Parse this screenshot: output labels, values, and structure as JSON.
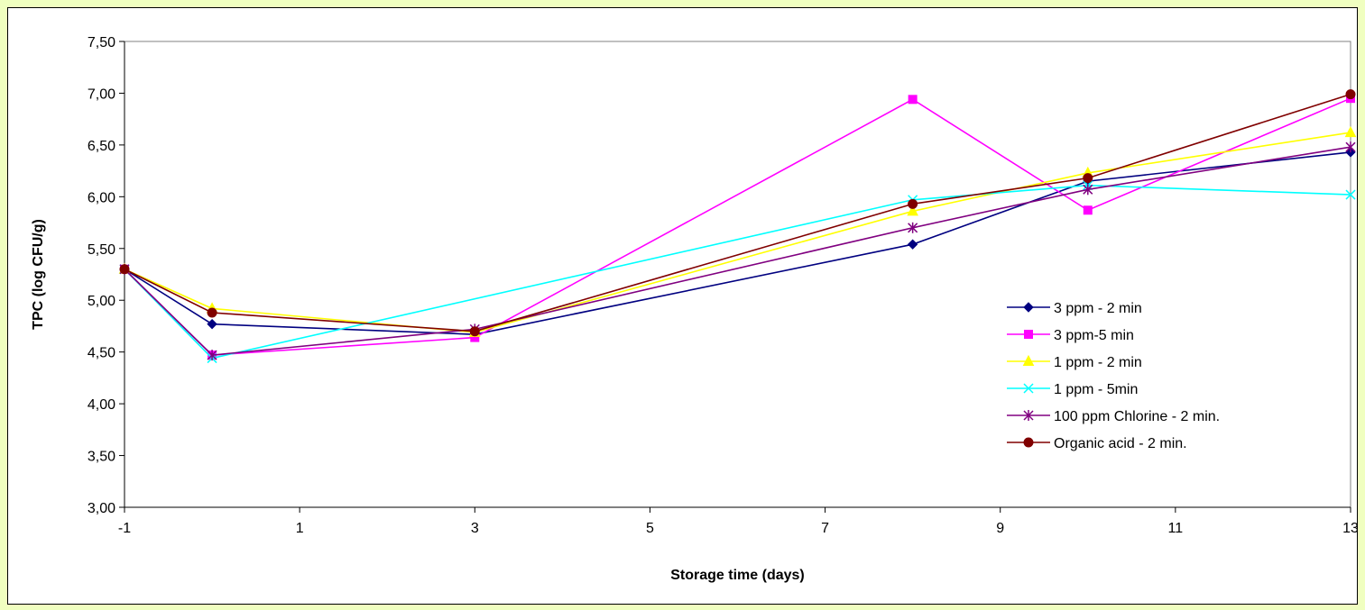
{
  "chart_data": {
    "type": "line",
    "title": "",
    "xlabel": "Storage time (days)",
    "ylabel": "TPC (log CFU/g)",
    "xlim": [
      -1,
      13
    ],
    "ylim": [
      3.0,
      7.5
    ],
    "x_ticks": [
      "-1",
      "1",
      "3",
      "5",
      "7",
      "9",
      "11",
      "13"
    ],
    "x_tick_values": [
      -1,
      1,
      3,
      5,
      7,
      9,
      11,
      13
    ],
    "y_ticks": [
      "3,00",
      "3,50",
      "4,00",
      "4,50",
      "5,00",
      "5,50",
      "6,00",
      "6,50",
      "7,00",
      "7,50"
    ],
    "y_tick_values": [
      3.0,
      3.5,
      4.0,
      4.5,
      5.0,
      5.5,
      6.0,
      6.5,
      7.0,
      7.5
    ],
    "grid": false,
    "legend_position": "right",
    "series": [
      {
        "name": "3 ppm - 2 min",
        "color": "#000080",
        "marker": "diamond",
        "points": [
          [
            -1,
            5.3
          ],
          [
            0,
            4.77
          ],
          [
            3,
            4.67
          ],
          [
            8,
            5.54
          ],
          [
            10,
            6.15
          ],
          [
            13,
            6.43
          ]
        ]
      },
      {
        "name": "3 ppm-5 min",
        "color": "#ff00ff",
        "marker": "square",
        "points": [
          [
            -1,
            5.3
          ],
          [
            0,
            4.47
          ],
          [
            3,
            4.64
          ],
          [
            8,
            6.94
          ],
          [
            10,
            5.87
          ],
          [
            13,
            6.95
          ]
        ]
      },
      {
        "name": "1 ppm - 2 min",
        "color": "#ffff00",
        "marker": "triangle",
        "points": [
          [
            -1,
            5.3
          ],
          [
            0,
            4.92
          ],
          [
            3,
            4.69
          ],
          [
            8,
            5.86
          ],
          [
            10,
            6.23
          ],
          [
            13,
            6.62
          ]
        ]
      },
      {
        "name": "1 ppm - 5min",
        "color": "#00ffff",
        "marker": "x",
        "points": [
          [
            -1,
            5.3
          ],
          [
            0,
            4.44
          ],
          [
            8,
            5.97
          ],
          [
            10,
            6.11
          ],
          [
            13,
            6.02
          ]
        ]
      },
      {
        "name": "100 ppm Chlorine - 2 min.",
        "color": "#800080",
        "marker": "asterisk",
        "points": [
          [
            -1,
            5.3
          ],
          [
            0,
            4.47
          ],
          [
            3,
            4.72
          ],
          [
            8,
            5.7
          ],
          [
            10,
            6.07
          ],
          [
            13,
            6.48
          ]
        ]
      },
      {
        "name": "Organic acid - 2 min.",
        "color": "#800000",
        "marker": "circle",
        "points": [
          [
            -1,
            5.3
          ],
          [
            0,
            4.88
          ],
          [
            3,
            4.7
          ],
          [
            8,
            5.93
          ],
          [
            10,
            6.18
          ],
          [
            13,
            6.99
          ]
        ]
      }
    ]
  }
}
